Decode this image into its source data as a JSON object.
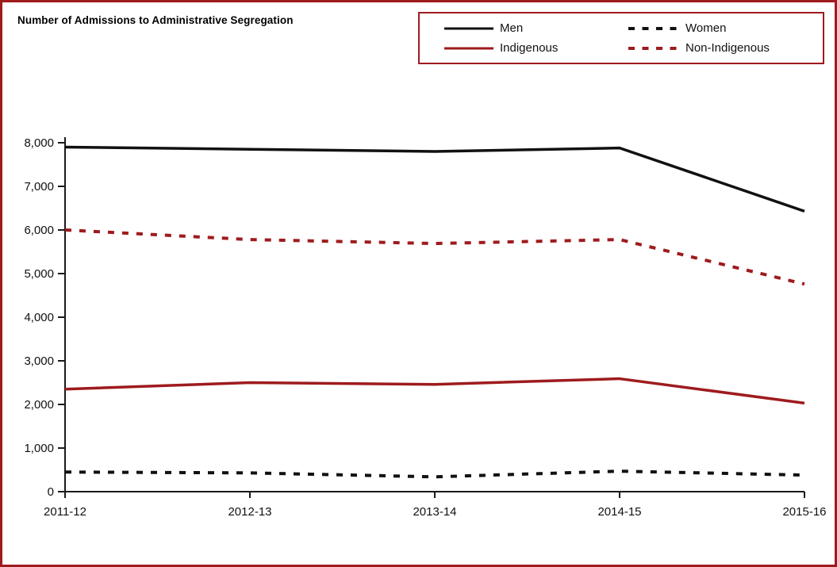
{
  "page": {
    "background": "#FFFFFF",
    "border_color": "#9E1B1E"
  },
  "chart_data": {
    "type": "line",
    "title": "Number of Admissions to Administrative Segregation",
    "categories": [
      "2011-12",
      "2012-13",
      "2013-14",
      "2014-15",
      "2015-16"
    ],
    "series": [
      {
        "name": "Men",
        "color": "#111111",
        "dash": "solid",
        "values": [
          7900,
          7850,
          7800,
          7880,
          6430
        ]
      },
      {
        "name": "Women",
        "color": "#111111",
        "dash": "dashed",
        "values": [
          450,
          430,
          340,
          470,
          380
        ]
      },
      {
        "name": "Indigenous",
        "color": "#9E1B1E",
        "dash": "solid",
        "values": [
          2350,
          2500,
          2460,
          2590,
          2030
        ]
      },
      {
        "name": "Non-Indigenous",
        "color": "#9E1B1E",
        "dash": "dashed",
        "values": [
          6000,
          5780,
          5690,
          5780,
          4760
        ]
      }
    ],
    "xlabel": "",
    "ylabel": "",
    "ylim": [
      0,
      8000
    ],
    "y_tick_step": 1000,
    "y_tick_labels": [
      "0",
      "1,000",
      "2,000",
      "3,000",
      "4,000",
      "5,000",
      "6,000",
      "7,000",
      "8,000"
    ],
    "grid": false,
    "legend_position": "top-right",
    "axis_color": "#1A1A1A"
  }
}
